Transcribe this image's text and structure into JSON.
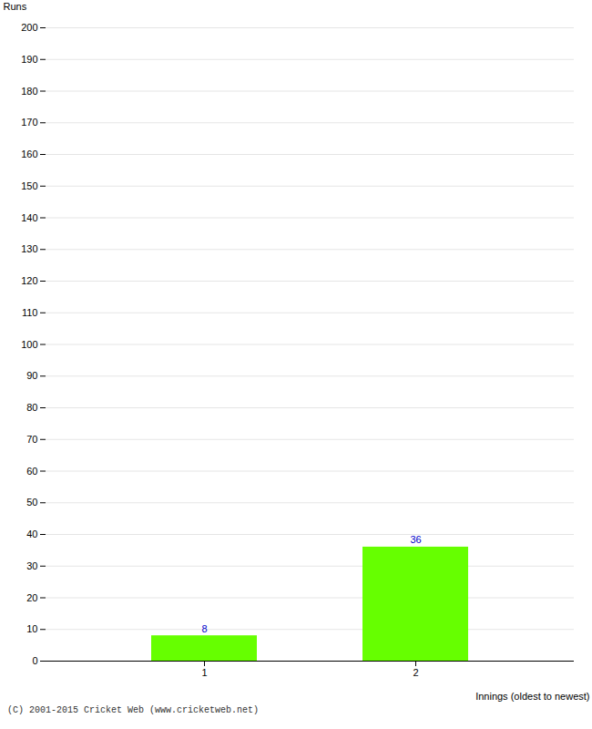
{
  "chart_data": {
    "type": "bar",
    "categories": [
      "1",
      "2"
    ],
    "values": [
      8,
      36
    ],
    "color": "#66ff00",
    "xlabel": "Innings (oldest to newest)",
    "ylabel": "Runs",
    "ylim": [
      0,
      200
    ],
    "yticks": [
      0,
      10,
      20,
      30,
      40,
      50,
      60,
      70,
      80,
      90,
      100,
      110,
      120,
      130,
      140,
      150,
      160,
      170,
      180,
      190,
      200
    ],
    "grid": true,
    "data_labels": true,
    "annotations": [
      "(C) 2001-2015 Cricket Web (www.cricketweb.net)"
    ]
  }
}
